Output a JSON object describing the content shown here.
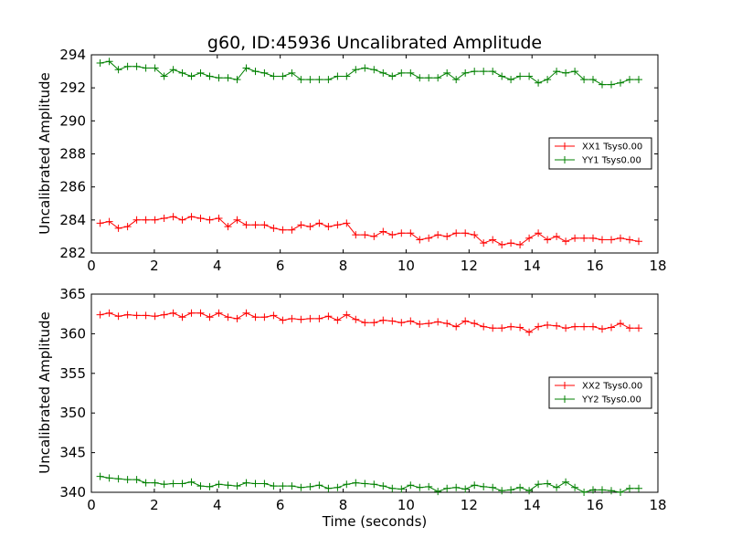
{
  "chart_data": [
    {
      "type": "line",
      "title": "g60, ID:45936 Uncalibrated Amplitude",
      "xlabel": "",
      "ylabel": "Uncalibrated Amplitude",
      "xlim": [
        0,
        18
      ],
      "ylim": [
        282,
        294
      ],
      "xticks": [
        "0",
        "2",
        "4",
        "6",
        "8",
        "10",
        "12",
        "14",
        "16",
        "18"
      ],
      "yticks": [
        "282",
        "284",
        "286",
        "288",
        "290",
        "292",
        "294"
      ],
      "grid": false,
      "legend_position": "right",
      "x": [
        0.28,
        0.57,
        0.86,
        1.15,
        1.44,
        1.73,
        2.02,
        2.31,
        2.6,
        2.89,
        3.18,
        3.47,
        3.76,
        4.05,
        4.34,
        4.63,
        4.92,
        5.21,
        5.5,
        5.79,
        6.08,
        6.37,
        6.66,
        6.95,
        7.24,
        7.53,
        7.82,
        8.11,
        8.4,
        8.69,
        8.98,
        9.27,
        9.56,
        9.85,
        10.14,
        10.43,
        10.72,
        11.01,
        11.3,
        11.59,
        11.88,
        12.17,
        12.46,
        12.75,
        13.04,
        13.33,
        13.62,
        13.91,
        14.2,
        14.49,
        14.78,
        15.07,
        15.36,
        15.65,
        15.94,
        16.23,
        16.52,
        16.81,
        17.1,
        17.39
      ],
      "series": [
        {
          "name": "XX1 Tsys0.00",
          "color": "#ff0000",
          "values": [
            283.8,
            283.9,
            283.5,
            283.6,
            284.0,
            284.0,
            284.0,
            284.1,
            284.2,
            284.0,
            284.2,
            284.1,
            284.0,
            284.1,
            283.6,
            284.0,
            283.7,
            283.7,
            283.7,
            283.5,
            283.4,
            283.4,
            283.7,
            283.6,
            283.8,
            283.6,
            283.7,
            283.8,
            283.1,
            283.1,
            283.0,
            283.3,
            283.1,
            283.2,
            283.2,
            282.8,
            282.9,
            283.1,
            283.0,
            283.2,
            283.2,
            283.1,
            282.6,
            282.8,
            282.5,
            282.6,
            282.5,
            282.9,
            283.2,
            282.8,
            283.0,
            282.7,
            282.9,
            282.9,
            282.9,
            282.8,
            282.8,
            282.9,
            282.8,
            282.7
          ]
        },
        {
          "name": "YY1 Tsys0.00",
          "color": "#008000",
          "values": [
            293.5,
            293.6,
            293.1,
            293.3,
            293.3,
            293.2,
            293.2,
            292.7,
            293.1,
            292.9,
            292.7,
            292.9,
            292.7,
            292.6,
            292.6,
            292.5,
            293.2,
            293.0,
            292.9,
            292.7,
            292.7,
            292.9,
            292.5,
            292.5,
            292.5,
            292.5,
            292.7,
            292.7,
            293.1,
            293.2,
            293.1,
            292.9,
            292.7,
            292.9,
            292.9,
            292.6,
            292.6,
            292.6,
            292.9,
            292.5,
            292.9,
            293.0,
            293.0,
            293.0,
            292.7,
            292.5,
            292.7,
            292.7,
            292.3,
            292.5,
            293.0,
            292.9,
            293.0,
            292.5,
            292.5,
            292.2,
            292.2,
            292.3,
            292.5,
            292.5
          ]
        }
      ]
    },
    {
      "type": "line",
      "title": "",
      "xlabel": "Time (seconds)",
      "ylabel": "Uncalibrated Amplitude",
      "xlim": [
        0,
        18
      ],
      "ylim": [
        340,
        365
      ],
      "xticks": [
        "0",
        "2",
        "4",
        "6",
        "8",
        "10",
        "12",
        "14",
        "16",
        "18"
      ],
      "yticks": [
        "340",
        "345",
        "350",
        "355",
        "360",
        "365"
      ],
      "grid": false,
      "legend_position": "right",
      "x": [
        0.28,
        0.57,
        0.86,
        1.15,
        1.44,
        1.73,
        2.02,
        2.31,
        2.6,
        2.89,
        3.18,
        3.47,
        3.76,
        4.05,
        4.34,
        4.63,
        4.92,
        5.21,
        5.5,
        5.79,
        6.08,
        6.37,
        6.66,
        6.95,
        7.24,
        7.53,
        7.82,
        8.11,
        8.4,
        8.69,
        8.98,
        9.27,
        9.56,
        9.85,
        10.14,
        10.43,
        10.72,
        11.01,
        11.3,
        11.59,
        11.88,
        12.17,
        12.46,
        12.75,
        13.04,
        13.33,
        13.62,
        13.91,
        14.2,
        14.49,
        14.78,
        15.07,
        15.36,
        15.65,
        15.94,
        16.23,
        16.52,
        16.81,
        17.1,
        17.39
      ],
      "series": [
        {
          "name": "XX2 Tsys0.00",
          "color": "#ff0000",
          "values": [
            362.4,
            362.6,
            362.2,
            362.4,
            362.3,
            362.3,
            362.2,
            362.4,
            362.6,
            362.1,
            362.6,
            362.6,
            362.1,
            362.6,
            362.1,
            361.9,
            362.6,
            362.1,
            362.1,
            362.3,
            361.7,
            361.9,
            361.8,
            361.9,
            361.9,
            362.2,
            361.7,
            362.4,
            361.8,
            361.4,
            361.4,
            361.7,
            361.6,
            361.4,
            361.6,
            361.2,
            361.3,
            361.5,
            361.3,
            360.9,
            361.6,
            361.3,
            360.9,
            360.7,
            360.7,
            360.9,
            360.8,
            360.2,
            360.9,
            361.1,
            361.0,
            360.7,
            360.9,
            360.9,
            360.9,
            360.6,
            360.8,
            361.3,
            360.7,
            360.7
          ]
        },
        {
          "name": "YY2 Tsys0.00",
          "color": "#008000",
          "values": [
            342.0,
            341.8,
            341.7,
            341.6,
            341.6,
            341.2,
            341.2,
            341.0,
            341.1,
            341.1,
            341.3,
            340.8,
            340.7,
            341.0,
            340.9,
            340.8,
            341.2,
            341.1,
            341.1,
            340.8,
            340.8,
            340.8,
            340.6,
            340.7,
            340.9,
            340.5,
            340.6,
            341.0,
            341.2,
            341.1,
            341.0,
            340.8,
            340.5,
            340.4,
            340.9,
            340.6,
            340.7,
            340.1,
            340.5,
            340.6,
            340.4,
            340.9,
            340.7,
            340.6,
            340.2,
            340.3,
            340.6,
            340.2,
            341.0,
            341.1,
            340.6,
            341.3,
            340.6,
            340.0,
            340.3,
            340.3,
            340.2,
            340.0,
            340.5,
            340.5
          ]
        }
      ]
    }
  ]
}
